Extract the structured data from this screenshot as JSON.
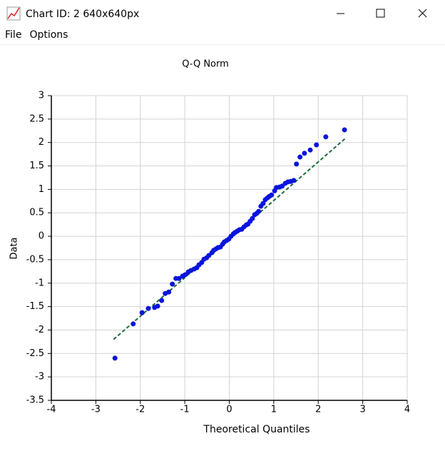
{
  "window": {
    "title": "Chart  ID: 2  640x640px",
    "menu": [
      "File",
      "Options"
    ]
  },
  "chart_data": {
    "type": "scatter",
    "title": "Q-Q Norm",
    "x_label": "Theoretical Quantiles",
    "y_label": "Data",
    "color": "#0a14dc",
    "grid": true,
    "xlim": [
      -4,
      4
    ],
    "xticks": [
      -4,
      -3,
      -2,
      -1,
      0,
      1,
      2,
      3,
      4
    ],
    "ylim": [
      -3.5,
      3
    ],
    "yticks": [
      -3.5,
      -3,
      -2.5,
      -2,
      -1.5,
      -1,
      -0.5,
      0,
      0.5,
      1,
      1.5,
      2,
      2.5,
      3
    ],
    "x": [
      -2.57,
      -2.16,
      -1.96,
      -1.82,
      -1.68,
      -1.61,
      -1.52,
      -1.44,
      -1.36,
      -1.28,
      -1.2,
      -1.13,
      -1.05,
      -0.99,
      -0.92,
      -0.86,
      -0.79,
      -0.73,
      -0.68,
      -0.62,
      -0.57,
      -0.51,
      -0.46,
      -0.39,
      -0.35,
      -0.3,
      -0.25,
      -0.2,
      -0.15,
      -0.11,
      -0.06,
      -0.01,
      0.04,
      0.09,
      0.13,
      0.18,
      0.23,
      0.28,
      0.33,
      0.38,
      0.42,
      0.47,
      0.52,
      0.57,
      0.62,
      0.66,
      0.71,
      0.76,
      0.81,
      0.86,
      0.9,
      0.95,
      1.02,
      1.06,
      1.13,
      1.19,
      1.26,
      1.32,
      1.38,
      1.45,
      1.51,
      1.59,
      1.69,
      1.82,
      1.96,
      2.17,
      2.59
    ],
    "values": [
      -2.6,
      -1.87,
      -1.63,
      -1.54,
      -1.52,
      -1.49,
      -1.37,
      -1.22,
      -1.19,
      -1.02,
      -0.9,
      -0.9,
      -0.85,
      -0.82,
      -0.76,
      -0.73,
      -0.7,
      -0.67,
      -0.61,
      -0.56,
      -0.49,
      -0.46,
      -0.41,
      -0.35,
      -0.3,
      -0.27,
      -0.24,
      -0.23,
      -0.17,
      -0.12,
      -0.09,
      -0.06,
      0,
      0.05,
      0.08,
      0.11,
      0.14,
      0.15,
      0.2,
      0.24,
      0.26,
      0.32,
      0.38,
      0.46,
      0.49,
      0.53,
      0.64,
      0.7,
      0.78,
      0.82,
      0.85,
      0.88,
      0.97,
      1.04,
      1.05,
      1.07,
      1.13,
      1.16,
      1.17,
      1.19,
      1.54,
      1.69,
      1.77,
      1.84,
      1.95,
      2.12,
      2.27
    ],
    "reference_line": {
      "x": [
        -2.6,
        2.6
      ],
      "y": [
        -2.2,
        2.08
      ],
      "color": "#1e6b3c"
    }
  }
}
